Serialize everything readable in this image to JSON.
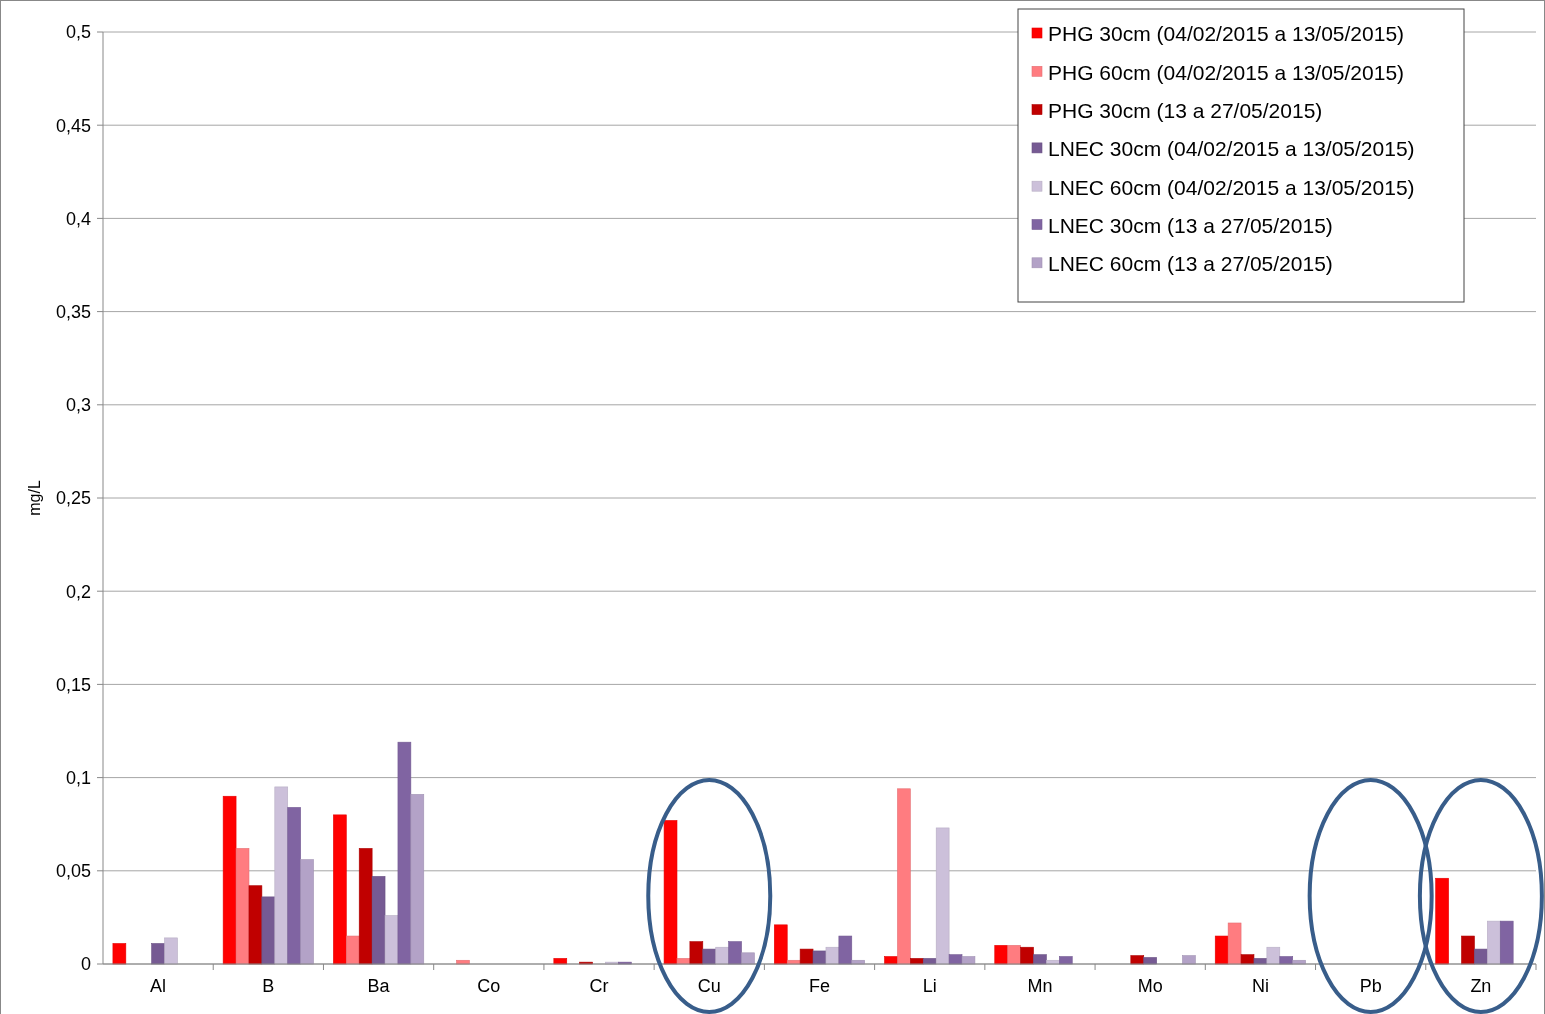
{
  "chart_data": {
    "type": "bar",
    "ylabel": "mg/L",
    "categories": [
      "Al",
      "B",
      "Ba",
      "Co",
      "Cr",
      "Cu",
      "Fe",
      "Li",
      "Mn",
      "Mo",
      "Ni",
      "Pb",
      "Zn"
    ],
    "series": [
      {
        "name": "PHG 30cm (04/02/2015 a 13/05/2015)",
        "color": "#ff0000",
        "values": [
          0.011,
          0.09,
          0.08,
          null,
          0.003,
          0.077,
          0.021,
          0.004,
          0.01,
          null,
          0.015,
          null,
          0.046
        ]
      },
      {
        "name": "PHG 60cm (04/02/2015 a 13/05/2015)",
        "color": "#ff7c80",
        "values": [
          null,
          0.062,
          0.015,
          0.002,
          null,
          0.003,
          0.002,
          0.094,
          0.01,
          null,
          0.022,
          null,
          null
        ]
      },
      {
        "name": "PHG 30cm (13 a 27/05/2015)",
        "color": "#c00000",
        "values": [
          null,
          0.042,
          0.062,
          null,
          0.001,
          0.012,
          0.008,
          0.003,
          0.009,
          0.0045,
          0.005,
          null,
          0.015
        ]
      },
      {
        "name": "LNEC 30cm (04/02/2015 a 13/05/2015)",
        "color": "#765a93",
        "values": [
          0.011,
          0.036,
          0.047,
          null,
          null,
          0.008,
          0.007,
          0.003,
          0.005,
          0.0035,
          0.003,
          null,
          0.008
        ]
      },
      {
        "name": "LNEC 60cm (04/02/2015 a 13/05/2015)",
        "color": "#ccc0da",
        "values": [
          0.014,
          0.095,
          0.026,
          null,
          0.001,
          0.009,
          0.009,
          0.073,
          0.002,
          null,
          0.009,
          null,
          0.023
        ]
      },
      {
        "name": "LNEC 30cm (13 a 27/05/2015)",
        "color": "#8064a2",
        "values": [
          null,
          0.084,
          0.119,
          null,
          0.001,
          0.012,
          0.015,
          0.005,
          0.004,
          null,
          0.004,
          null,
          0.023
        ]
      },
      {
        "name": "LNEC 60cm (13 a 27/05/2015)",
        "color": "#b3a2c7",
        "values": [
          null,
          0.056,
          0.091,
          null,
          null,
          0.006,
          0.002,
          0.004,
          null,
          0.0045,
          0.002,
          null,
          null
        ]
      }
    ],
    "ylim": [
      0,
      0.5
    ],
    "yticks": [
      0,
      {
        "value": 0.05,
        "label": "0,05"
      },
      {
        "value": 0.1,
        "label": "0,1"
      },
      {
        "value": 0.15,
        "label": "0,15"
      },
      {
        "value": 0.2,
        "label": "0,2"
      },
      {
        "value": 0.25,
        "label": "0,25"
      },
      {
        "value": 0.3,
        "label": "0,3"
      },
      {
        "value": 0.35,
        "label": "0,35"
      },
      {
        "value": 0.4,
        "label": "0,4"
      },
      {
        "value": 0.45,
        "label": "0,45"
      },
      {
        "value": 0.5,
        "label": "0,5"
      }
    ],
    "grid": "y",
    "legend": "top right"
  }
}
